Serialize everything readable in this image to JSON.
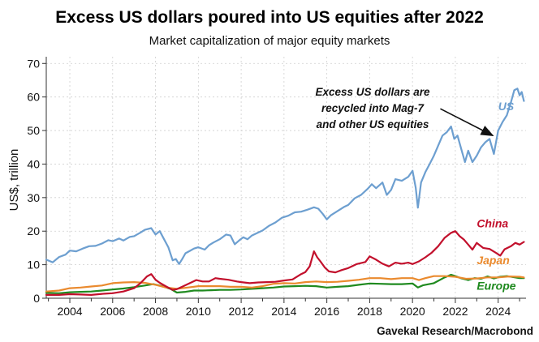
{
  "chart_data": {
    "type": "line",
    "title": "Excess US dollars poured into US equities after 2022",
    "subtitle": "Market capitalization of major equity markets",
    "xlabel": "",
    "ylabel": "US$, trillion",
    "xlim": [
      2002.9,
      2025.3
    ],
    "ylim": [
      0,
      72
    ],
    "x_ticks": [
      "2004",
      "2006",
      "2008",
      "2010",
      "2012",
      "2014",
      "2016",
      "2018",
      "2020",
      "2022",
      "2024"
    ],
    "y_ticks": [
      "0",
      "10",
      "20",
      "30",
      "40",
      "50",
      "60",
      "70"
    ],
    "grid": true,
    "annotation": {
      "lines": [
        "Excess US dollars are",
        "recycled into Mag-7",
        "and other US equities"
      ],
      "arrow_from": [
        2021.3,
        56.5
      ],
      "arrow_to": [
        2023.75,
        48.5
      ]
    },
    "source": "Gavekal Research/Macrobond",
    "series": [
      {
        "name": "US",
        "color": "#6d9fd0",
        "label_at": [
          2024.0,
          56
        ],
        "x": [
          2002.9,
          2003.2,
          2003.5,
          2003.8,
          2004.0,
          2004.3,
          2004.6,
          2004.9,
          2005.2,
          2005.5,
          2005.8,
          2006.0,
          2006.3,
          2006.5,
          2006.8,
          2007.0,
          2007.3,
          2007.5,
          2007.8,
          2008.0,
          2008.2,
          2008.4,
          2008.6,
          2008.8,
          2008.95,
          2009.1,
          2009.25,
          2009.4,
          2009.6,
          2009.8,
          2010.0,
          2010.3,
          2010.5,
          2010.7,
          2011.0,
          2011.3,
          2011.5,
          2011.7,
          2011.9,
          2012.1,
          2012.3,
          2012.5,
          2012.8,
          2013.0,
          2013.3,
          2013.6,
          2013.9,
          2014.2,
          2014.5,
          2014.8,
          2015.1,
          2015.4,
          2015.6,
          2015.8,
          2016.0,
          2016.2,
          2016.5,
          2016.8,
          2017.0,
          2017.3,
          2017.6,
          2017.9,
          2018.1,
          2018.3,
          2018.6,
          2018.8,
          2019.0,
          2019.2,
          2019.5,
          2019.8,
          2020.0,
          2020.15,
          2020.25,
          2020.4,
          2020.6,
          2020.8,
          2021.0,
          2021.2,
          2021.4,
          2021.6,
          2021.8,
          2021.95,
          2022.1,
          2022.3,
          2022.45,
          2022.6,
          2022.8,
          2023.0,
          2023.2,
          2023.4,
          2023.6,
          2023.8,
          2024.0,
          2024.2,
          2024.4,
          2024.6,
          2024.75,
          2024.9,
          2025.0,
          2025.1,
          2025.2
        ],
        "values": [
          11.5,
          10.7,
          12.3,
          13.0,
          14.2,
          14.0,
          14.8,
          15.5,
          15.6,
          16.3,
          17.3,
          17.0,
          17.8,
          17.2,
          18.3,
          18.5,
          19.6,
          20.4,
          20.9,
          19.0,
          20.0,
          17.6,
          15.2,
          11.3,
          11.7,
          10.2,
          11.7,
          13.4,
          14.1,
          14.8,
          15.2,
          14.5,
          15.8,
          16.6,
          17.6,
          19.0,
          18.7,
          16.1,
          17.2,
          18.2,
          17.6,
          18.7,
          19.6,
          20.2,
          21.6,
          22.6,
          24.0,
          24.6,
          25.6,
          25.8,
          26.4,
          27.1,
          26.7,
          25.2,
          23.5,
          24.8,
          26.0,
          27.2,
          27.8,
          29.8,
          30.8,
          32.6,
          34.0,
          32.8,
          34.5,
          30.8,
          32.3,
          35.5,
          35.0,
          36.2,
          38.0,
          33.0,
          27.0,
          34.5,
          37.6,
          40.0,
          42.5,
          45.5,
          48.5,
          49.5,
          51.2,
          47.5,
          48.5,
          44.0,
          40.6,
          44.0,
          40.6,
          42.5,
          45.0,
          46.5,
          47.5,
          43.0,
          50.0,
          52.5,
          54.5,
          58.5,
          62.0,
          62.5,
          60.5,
          61.5,
          58.8
        ]
      },
      {
        "name": "China",
        "color": "#c2102c",
        "label_at": [
          2023.0,
          21.2
        ],
        "x": [
          2002.9,
          2003.5,
          2004.0,
          2004.5,
          2005.0,
          2005.5,
          2006.0,
          2006.5,
          2007.0,
          2007.3,
          2007.6,
          2007.8,
          2008.0,
          2008.2,
          2008.5,
          2008.8,
          2009.0,
          2009.3,
          2009.6,
          2009.9,
          2010.2,
          2010.5,
          2010.8,
          2011.0,
          2011.4,
          2011.8,
          2012.0,
          2012.4,
          2012.8,
          2013.2,
          2013.6,
          2014.0,
          2014.4,
          2014.8,
          2015.0,
          2015.2,
          2015.4,
          2015.55,
          2015.7,
          2015.9,
          2016.1,
          2016.4,
          2016.7,
          2017.0,
          2017.4,
          2017.8,
          2018.0,
          2018.3,
          2018.6,
          2018.9,
          2019.2,
          2019.5,
          2019.8,
          2020.0,
          2020.3,
          2020.6,
          2020.9,
          2021.2,
          2021.5,
          2021.8,
          2022.0,
          2022.2,
          2022.4,
          2022.6,
          2022.8,
          2023.0,
          2023.3,
          2023.6,
          2023.9,
          2024.1,
          2024.3,
          2024.6,
          2024.8,
          2025.0,
          2025.2
        ],
        "values": [
          1.0,
          1.0,
          1.2,
          1.1,
          1.0,
          1.3,
          1.5,
          2.0,
          3.0,
          4.5,
          6.5,
          7.2,
          5.5,
          4.6,
          3.5,
          2.5,
          2.7,
          3.6,
          4.5,
          5.4,
          5.0,
          5.0,
          6.0,
          5.8,
          5.5,
          5.0,
          4.8,
          4.5,
          4.7,
          4.8,
          4.9,
          5.3,
          5.6,
          7.2,
          7.8,
          9.5,
          14.0,
          12.2,
          11.0,
          9.2,
          8.0,
          7.7,
          8.4,
          9.0,
          10.2,
          10.8,
          12.5,
          11.5,
          10.3,
          9.5,
          10.6,
          10.3,
          10.6,
          10.2,
          11.0,
          12.2,
          13.6,
          15.5,
          18.0,
          19.5,
          20.0,
          18.5,
          17.5,
          16.0,
          14.5,
          16.5,
          15.0,
          14.7,
          13.5,
          12.7,
          14.6,
          15.5,
          16.5,
          16.0,
          16.8
        ]
      },
      {
        "name": "Japan",
        "color": "#ea8a2e",
        "label_at": [
          2023.0,
          10.2
        ],
        "x": [
          2002.9,
          2003.5,
          2004.0,
          2004.5,
          2005.0,
          2005.5,
          2006.0,
          2006.5,
          2007.0,
          2007.5,
          2008.0,
          2008.5,
          2009.0,
          2009.5,
          2010.0,
          2010.5,
          2011.0,
          2011.5,
          2012.0,
          2012.5,
          2013.0,
          2013.5,
          2014.0,
          2014.5,
          2015.0,
          2015.5,
          2016.0,
          2016.5,
          2017.0,
          2017.5,
          2018.0,
          2018.5,
          2019.0,
          2019.5,
          2020.0,
          2020.3,
          2020.6,
          2021.0,
          2021.5,
          2022.0,
          2022.5,
          2023.0,
          2023.5,
          2024.0,
          2024.5,
          2025.0,
          2025.2
        ],
        "values": [
          2.0,
          2.3,
          3.0,
          3.2,
          3.5,
          3.8,
          4.5,
          4.7,
          4.8,
          4.6,
          4.0,
          3.2,
          2.8,
          3.2,
          3.6,
          3.6,
          3.6,
          3.4,
          3.4,
          3.2,
          3.6,
          4.3,
          4.5,
          4.4,
          4.8,
          5.0,
          4.8,
          4.9,
          5.2,
          5.5,
          6.0,
          6.0,
          5.7,
          6.0,
          6.0,
          5.4,
          6.0,
          6.6,
          6.6,
          6.4,
          5.8,
          5.9,
          6.2,
          6.2,
          6.5,
          6.4,
          6.2
        ]
      },
      {
        "name": "Europe",
        "color": "#1f8a1f",
        "label_at": [
          2023.0,
          2.5
        ],
        "x": [
          2002.9,
          2003.5,
          2004.0,
          2004.5,
          2005.0,
          2005.5,
          2006.0,
          2006.5,
          2007.0,
          2007.5,
          2007.9,
          2008.3,
          2008.7,
          2009.0,
          2009.4,
          2009.8,
          2010.2,
          2010.6,
          2011.0,
          2011.5,
          2012.0,
          2012.5,
          2013.0,
          2013.5,
          2014.0,
          2014.5,
          2015.0,
          2015.5,
          2016.0,
          2016.5,
          2017.0,
          2017.5,
          2018.0,
          2018.5,
          2019.0,
          2019.5,
          2020.0,
          2020.25,
          2020.5,
          2021.0,
          2021.5,
          2021.8,
          2022.0,
          2022.3,
          2022.6,
          2022.9,
          2023.2,
          2023.5,
          2023.8,
          2024.1,
          2024.4,
          2024.7,
          2025.0,
          2025.2
        ],
        "values": [
          1.6,
          1.5,
          1.8,
          1.9,
          2.0,
          2.3,
          2.6,
          2.9,
          3.3,
          3.8,
          4.2,
          3.6,
          2.8,
          1.7,
          1.9,
          2.3,
          2.3,
          2.4,
          2.5,
          2.5,
          2.6,
          2.8,
          3.0,
          3.2,
          3.5,
          3.6,
          3.7,
          3.6,
          3.2,
          3.4,
          3.6,
          4.0,
          4.4,
          4.3,
          4.2,
          4.2,
          4.4,
          3.2,
          3.9,
          4.5,
          6.2,
          7.0,
          6.6,
          5.9,
          5.4,
          6.0,
          5.8,
          6.5,
          5.9,
          6.4,
          6.6,
          6.3,
          6.0,
          6.0
        ]
      }
    ]
  }
}
